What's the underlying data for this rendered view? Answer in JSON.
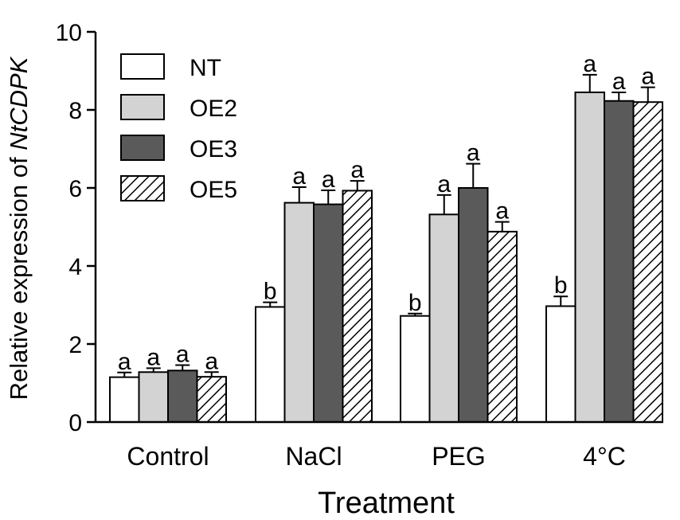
{
  "chart_data": {
    "type": "bar",
    "title": "",
    "xlabel": "Treatment",
    "ylabel_prefix": "Relative expression of ",
    "ylabel_gene": "NtCDPK",
    "ylim": [
      0,
      10
    ],
    "yticks": [
      0,
      2,
      4,
      6,
      8,
      10
    ],
    "ytick_labels": [
      "0",
      "2",
      "4",
      "6",
      "8",
      "10"
    ],
    "categories": [
      "Control",
      "NaCl",
      "PEG",
      "4°C"
    ],
    "legend_position": "top-left",
    "series": [
      {
        "name": "NT",
        "fill": "white",
        "values": [
          1.15,
          2.95,
          2.72,
          2.97
        ],
        "errors": [
          0.12,
          0.12,
          0.06,
          0.25
        ],
        "labels": [
          "a",
          "b",
          "b",
          "b"
        ]
      },
      {
        "name": "OE2",
        "fill": "#d3d3d3",
        "values": [
          1.28,
          5.62,
          5.32,
          8.45
        ],
        "errors": [
          0.1,
          0.4,
          0.5,
          0.45
        ],
        "labels": [
          "a",
          "a",
          "a",
          "a"
        ]
      },
      {
        "name": "OE3",
        "fill": "#5a5a5a",
        "values": [
          1.32,
          5.58,
          6.0,
          8.23
        ],
        "errors": [
          0.14,
          0.36,
          0.62,
          0.22
        ],
        "labels": [
          "a",
          "a",
          "a",
          "a"
        ]
      },
      {
        "name": "OE5",
        "fill": "hatch",
        "values": [
          1.16,
          5.93,
          4.88,
          8.2
        ],
        "errors": [
          0.12,
          0.25,
          0.25,
          0.38
        ],
        "labels": [
          "a",
          "a",
          "a",
          "a"
        ]
      }
    ]
  }
}
